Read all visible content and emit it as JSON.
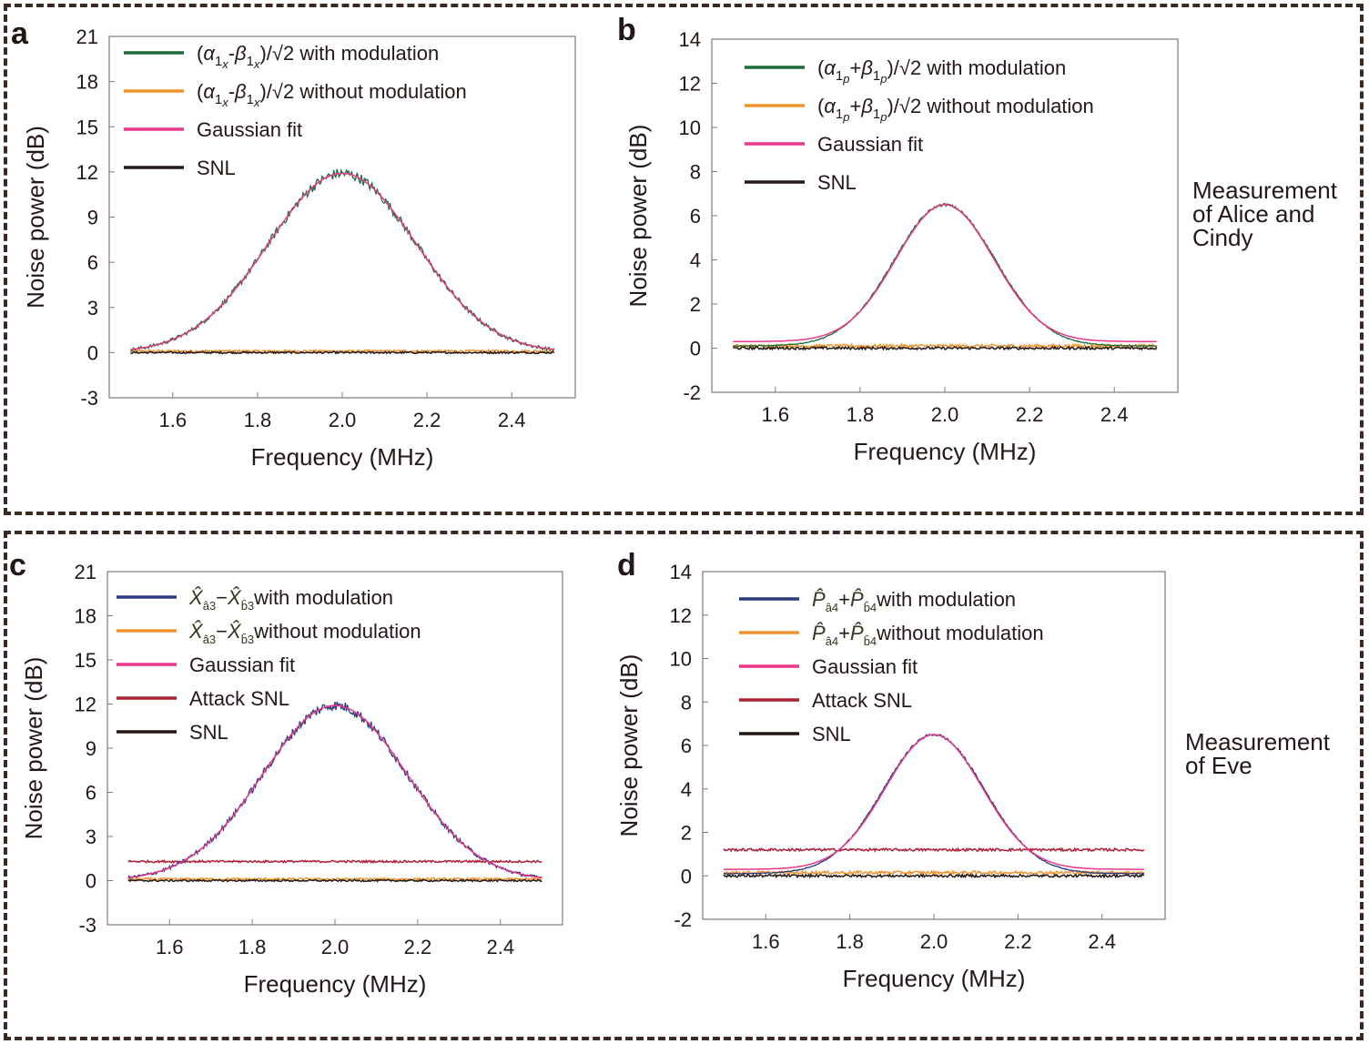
{
  "colors": {
    "with_modulation_a": "#1f6b3a",
    "with_modulation_blue": "#283a7a",
    "without_modulation": "#f0932e",
    "gaussian_fit": "#e8388a",
    "attack_snl": "#b01e34",
    "snl": "#231815"
  },
  "side_labels": {
    "top": [
      "Measurement",
      "of Alice and",
      "Cindy"
    ],
    "bottom": [
      "Measurement",
      "of Eve"
    ]
  },
  "chart_data": [
    {
      "panel": "a",
      "type": "line",
      "xlabel": "Frequency (MHz)",
      "ylabel": "Noise power (dB)",
      "xlim": [
        1.45,
        2.55
      ],
      "ylim": [
        -3,
        21
      ],
      "xticks": [
        "1.6",
        "1.8",
        "2.0",
        "2.2",
        "2.4"
      ],
      "yticks": [
        "-3",
        "0",
        "3",
        "6",
        "9",
        "12",
        "15",
        "18",
        "21"
      ],
      "legend_position": "top-left",
      "x_range": [
        1.5,
        2.5
      ],
      "series": [
        {
          "name": "(α1x-β1x)/√2 with modulation",
          "color_key": "with_modulation_a",
          "kind": "gauss",
          "peak": 11.9,
          "center": 2.0,
          "sigma": 0.175,
          "offset": 0,
          "noise": 0.35
        },
        {
          "name": "(α1x-β1x)/√2 without modulation",
          "color_key": "without_modulation",
          "kind": "flat",
          "level": 0.1,
          "noise": 0.08
        },
        {
          "name": "Gaussian fit",
          "color_key": "gaussian_fit",
          "kind": "gauss",
          "peak": 11.9,
          "center": 2.0,
          "sigma": 0.175,
          "offset": 0,
          "noise": 0
        },
        {
          "name": "SNL",
          "color_key": "snl",
          "kind": "flat",
          "level": 0.0,
          "noise": 0.06
        }
      ]
    },
    {
      "panel": "b",
      "type": "line",
      "xlabel": "Frequency (MHz)",
      "ylabel": "Noise power (dB)",
      "xlim": [
        1.45,
        2.55
      ],
      "ylim": [
        -2,
        14
      ],
      "xticks": [
        "1.6",
        "1.8",
        "2.0",
        "2.2",
        "2.4"
      ],
      "yticks": [
        "-2",
        "0",
        "2",
        "4",
        "6",
        "8",
        "10",
        "12",
        "14"
      ],
      "legend_position": "top-left",
      "x_range": [
        1.5,
        2.5
      ],
      "series": [
        {
          "name": "(α1p+β1p)/√2 with modulation",
          "color_key": "with_modulation_a",
          "kind": "gauss",
          "peak": 6.4,
          "center": 2.0,
          "sigma": 0.12,
          "offset": 0.1,
          "noise": 0.06
        },
        {
          "name": "(α1p+β1p)/√2 without modulation",
          "color_key": "without_modulation",
          "kind": "flat",
          "level": 0.1,
          "noise": 0.07
        },
        {
          "name": "Gaussian fit",
          "color_key": "gaussian_fit",
          "kind": "gauss",
          "peak": 6.2,
          "center": 2.0,
          "sigma": 0.115,
          "offset": 0.3,
          "noise": 0
        },
        {
          "name": "SNL",
          "color_key": "snl",
          "kind": "flat",
          "level": 0.0,
          "noise": 0.06
        }
      ]
    },
    {
      "panel": "c",
      "type": "line",
      "xlabel": "Frequency (MHz)",
      "ylabel": "Noise power (dB)",
      "xlim": [
        1.45,
        2.55
      ],
      "ylim": [
        -3,
        21
      ],
      "xticks": [
        "1.6",
        "1.8",
        "2.0",
        "2.2",
        "2.4"
      ],
      "yticks": [
        "-3",
        "0",
        "3",
        "6",
        "9",
        "12",
        "15",
        "18",
        "21"
      ],
      "legend_position": "top-left",
      "x_range": [
        1.5,
        2.5
      ],
      "series": [
        {
          "name": "X̂â3−X̂b̂3 with modulation",
          "color_key": "with_modulation_blue",
          "kind": "gauss",
          "peak": 11.9,
          "center": 2.0,
          "sigma": 0.175,
          "offset": 0,
          "noise": 0.35
        },
        {
          "name": "X̂â3−X̂b̂3 without modulation",
          "color_key": "without_modulation",
          "kind": "flat",
          "level": 0.1,
          "noise": 0.08
        },
        {
          "name": "Gaussian fit",
          "color_key": "gaussian_fit",
          "kind": "gauss",
          "peak": 11.9,
          "center": 2.0,
          "sigma": 0.175,
          "offset": 0,
          "noise": 0
        },
        {
          "name": "Attack SNL",
          "color_key": "attack_snl",
          "kind": "flat",
          "level": 1.3,
          "noise": 0.07
        },
        {
          "name": "SNL",
          "color_key": "snl",
          "kind": "flat",
          "level": 0.0,
          "noise": 0.06
        }
      ]
    },
    {
      "panel": "d",
      "type": "line",
      "xlabel": "Frequency (MHz)",
      "ylabel": "Noise power (dB)",
      "xlim": [
        1.45,
        2.55
      ],
      "ylim": [
        -2,
        14
      ],
      "xticks": [
        "1.6",
        "1.8",
        "2.0",
        "2.2",
        "2.4"
      ],
      "yticks": [
        "-2",
        "0",
        "2",
        "4",
        "6",
        "8",
        "10",
        "12",
        "14"
      ],
      "legend_position": "top-left",
      "x_range": [
        1.5,
        2.5
      ],
      "series": [
        {
          "name": "P̂â4+P̂b̂4 with modulation",
          "color_key": "with_modulation_blue",
          "kind": "gauss",
          "peak": 6.4,
          "center": 2.0,
          "sigma": 0.12,
          "offset": 0.1,
          "noise": 0.06
        },
        {
          "name": "P̂â4+P̂b̂4 without modulation",
          "color_key": "without_modulation",
          "kind": "flat",
          "level": 0.15,
          "noise": 0.07
        },
        {
          "name": "Gaussian fit",
          "color_key": "gaussian_fit",
          "kind": "gauss",
          "peak": 6.2,
          "center": 2.0,
          "sigma": 0.115,
          "offset": 0.3,
          "noise": 0
        },
        {
          "name": "Attack SNL",
          "color_key": "attack_snl",
          "kind": "flat",
          "level": 1.2,
          "noise": 0.06
        },
        {
          "name": "SNL",
          "color_key": "snl",
          "kind": "flat",
          "level": 0.0,
          "noise": 0.06
        }
      ]
    }
  ]
}
